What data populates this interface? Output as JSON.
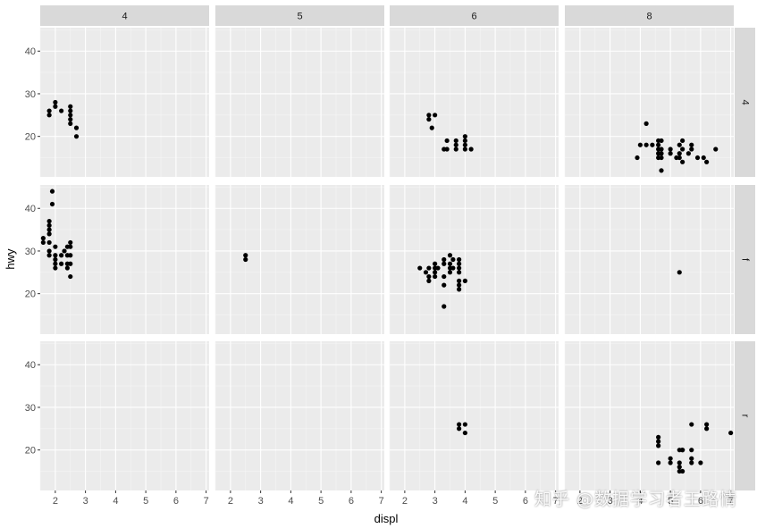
{
  "chart_data": {
    "type": "scatter",
    "xlabel": "displ",
    "ylabel": "hwy",
    "xlim": [
      1.5,
      7.1
    ],
    "ylim": [
      10.5,
      45.5
    ],
    "xticks": [
      2,
      3,
      4,
      5,
      6,
      7
    ],
    "yticks": [
      20,
      30,
      40
    ],
    "grid": true,
    "col_facets": [
      "4",
      "5",
      "6",
      "8"
    ],
    "row_facets": [
      "4",
      "f",
      "r"
    ],
    "panels": [
      {
        "col": "4",
        "row": "4",
        "points": [
          [
            1.8,
            25
          ],
          [
            1.8,
            26
          ],
          [
            2.0,
            27
          ],
          [
            2.0,
            28
          ],
          [
            2.2,
            26
          ],
          [
            2.5,
            24
          ],
          [
            2.5,
            25
          ],
          [
            2.5,
            26
          ],
          [
            2.5,
            27
          ],
          [
            2.5,
            23
          ],
          [
            2.7,
            22
          ],
          [
            2.7,
            20
          ]
        ]
      },
      {
        "col": "5",
        "row": "4",
        "points": []
      },
      {
        "col": "6",
        "row": "4",
        "points": [
          [
            2.8,
            24
          ],
          [
            2.8,
            25
          ],
          [
            3.0,
            25
          ],
          [
            2.9,
            22
          ],
          [
            3.3,
            17
          ],
          [
            3.4,
            17
          ],
          [
            3.4,
            19
          ],
          [
            3.7,
            17
          ],
          [
            3.7,
            18
          ],
          [
            3.7,
            19
          ],
          [
            4.0,
            17
          ],
          [
            4.0,
            18
          ],
          [
            4.0,
            19
          ],
          [
            4.0,
            20
          ],
          [
            4.2,
            17
          ]
        ]
      },
      {
        "col": "8",
        "row": "4",
        "points": [
          [
            3.9,
            15
          ],
          [
            4.0,
            18
          ],
          [
            4.2,
            23
          ],
          [
            4.2,
            18
          ],
          [
            4.4,
            18
          ],
          [
            4.6,
            15
          ],
          [
            4.6,
            16
          ],
          [
            4.6,
            17
          ],
          [
            4.6,
            18
          ],
          [
            4.6,
            19
          ],
          [
            4.7,
            12
          ],
          [
            4.7,
            15
          ],
          [
            4.7,
            16
          ],
          [
            4.7,
            17
          ],
          [
            4.7,
            19
          ],
          [
            5.0,
            16
          ],
          [
            5.0,
            17
          ],
          [
            5.2,
            15
          ],
          [
            5.3,
            15
          ],
          [
            5.3,
            16
          ],
          [
            5.3,
            18
          ],
          [
            5.4,
            14
          ],
          [
            5.4,
            17
          ],
          [
            5.4,
            19
          ],
          [
            5.6,
            16
          ],
          [
            5.7,
            17
          ],
          [
            5.7,
            18
          ],
          [
            5.9,
            15
          ],
          [
            6.1,
            15
          ],
          [
            6.2,
            14
          ],
          [
            6.5,
            17
          ]
        ]
      },
      {
        "col": "4",
        "row": "f",
        "points": [
          [
            1.6,
            32
          ],
          [
            1.6,
            33
          ],
          [
            1.8,
            29
          ],
          [
            1.8,
            30
          ],
          [
            1.8,
            32
          ],
          [
            1.8,
            34
          ],
          [
            1.8,
            35
          ],
          [
            1.8,
            36
          ],
          [
            1.8,
            37
          ],
          [
            1.9,
            41
          ],
          [
            1.9,
            44
          ],
          [
            2.0,
            29
          ],
          [
            2.0,
            31
          ],
          [
            2.0,
            28
          ],
          [
            2.0,
            27
          ],
          [
            2.0,
            26
          ],
          [
            2.2,
            29
          ],
          [
            2.2,
            27
          ],
          [
            2.3,
            30
          ],
          [
            2.4,
            29
          ],
          [
            2.4,
            31
          ],
          [
            2.4,
            27
          ],
          [
            2.4,
            26
          ],
          [
            2.5,
            24
          ],
          [
            2.5,
            27
          ],
          [
            2.5,
            29
          ],
          [
            2.5,
            31
          ],
          [
            2.5,
            32
          ]
        ]
      },
      {
        "col": "5",
        "row": "f",
        "points": [
          [
            2.5,
            28
          ],
          [
            2.5,
            29
          ]
        ]
      },
      {
        "col": "6",
        "row": "f",
        "points": [
          [
            2.5,
            26
          ],
          [
            2.7,
            25
          ],
          [
            2.8,
            23
          ],
          [
            2.8,
            24
          ],
          [
            2.8,
            26
          ],
          [
            3.0,
            24
          ],
          [
            3.0,
            25
          ],
          [
            3.0,
            26
          ],
          [
            3.0,
            27
          ],
          [
            3.1,
            26
          ],
          [
            3.3,
            17
          ],
          [
            3.3,
            22
          ],
          [
            3.3,
            24
          ],
          [
            3.3,
            27
          ],
          [
            3.3,
            28
          ],
          [
            3.5,
            25
          ],
          [
            3.5,
            26
          ],
          [
            3.5,
            27
          ],
          [
            3.5,
            29
          ],
          [
            3.6,
            26
          ],
          [
            3.6,
            28
          ],
          [
            3.8,
            21
          ],
          [
            3.8,
            22
          ],
          [
            3.8,
            23
          ],
          [
            3.8,
            25
          ],
          [
            3.8,
            26
          ],
          [
            3.8,
            27
          ],
          [
            3.8,
            28
          ],
          [
            4.0,
            23
          ]
        ]
      },
      {
        "col": "8",
        "row": "f",
        "points": [
          [
            5.3,
            25
          ]
        ]
      },
      {
        "col": "4",
        "row": "r",
        "points": []
      },
      {
        "col": "5",
        "row": "r",
        "points": []
      },
      {
        "col": "6",
        "row": "r",
        "points": [
          [
            3.8,
            25
          ],
          [
            3.8,
            26
          ],
          [
            4.0,
            24
          ],
          [
            4.0,
            26
          ]
        ]
      },
      {
        "col": "8",
        "row": "r",
        "points": [
          [
            4.6,
            17
          ],
          [
            4.6,
            21
          ],
          [
            4.6,
            22
          ],
          [
            4.6,
            23
          ],
          [
            5.0,
            17
          ],
          [
            5.0,
            18
          ],
          [
            5.3,
            15
          ],
          [
            5.3,
            16
          ],
          [
            5.3,
            17
          ],
          [
            5.3,
            20
          ],
          [
            5.4,
            20
          ],
          [
            5.4,
            20
          ],
          [
            5.4,
            15
          ],
          [
            5.7,
            17
          ],
          [
            5.7,
            18
          ],
          [
            5.7,
            20
          ],
          [
            5.7,
            26
          ],
          [
            6.0,
            17
          ],
          [
            6.2,
            25
          ],
          [
            6.2,
            26
          ],
          [
            7.0,
            24
          ]
        ]
      }
    ]
  },
  "watermark": "知乎 @数据学习者王路情"
}
